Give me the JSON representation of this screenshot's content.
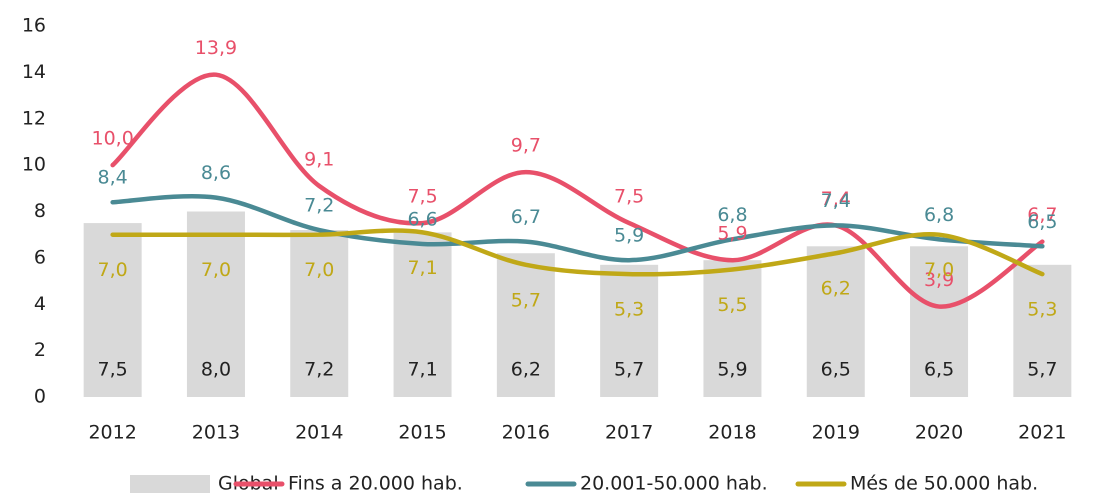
{
  "chart_data": {
    "type": "bar_line",
    "categories": [
      "2012",
      "2013",
      "2014",
      "2015",
      "2016",
      "2017",
      "2018",
      "2019",
      "2020",
      "2021"
    ],
    "ylim": [
      0,
      16
    ],
    "yticks": [
      0,
      2,
      4,
      6,
      8,
      10,
      12,
      14,
      16
    ],
    "grid": false,
    "legend": "bottom",
    "series": [
      {
        "name": "Global",
        "type": "bar",
        "color": "#d9d9d9",
        "values": [
          7.5,
          8.0,
          7.2,
          7.1,
          6.2,
          5.7,
          5.9,
          6.5,
          6.5,
          5.7
        ],
        "value_labels": [
          "7,5",
          "8,0",
          "7,2",
          "7,1",
          "6,2",
          "5,7",
          "5,9",
          "6,5",
          "6,5",
          "5,7"
        ]
      },
      {
        "name": "Fins a 20.000 hab.",
        "type": "line",
        "color": "#e8506a",
        "values": [
          10.0,
          13.9,
          9.1,
          7.5,
          9.7,
          7.5,
          5.9,
          7.4,
          3.9,
          6.7
        ],
        "value_labels": [
          "10,0",
          "13,9",
          "9,1",
          "7,5",
          "9,7",
          "7,5",
          "5,9",
          "7,4",
          "3,9",
          "6,7"
        ]
      },
      {
        "name": "20.001-50.000 hab.",
        "type": "line",
        "color": "#4a8a94",
        "values": [
          8.4,
          8.6,
          7.2,
          6.6,
          6.7,
          5.9,
          6.8,
          7.4,
          6.8,
          6.5
        ],
        "value_labels": [
          "8,4",
          "8,6",
          "7,2",
          "6,6",
          "6,7",
          "5,9",
          "6,8",
          "7,4",
          "6,8",
          "6,5"
        ]
      },
      {
        "name": "Més de 50.000 hab.",
        "type": "line",
        "color": "#c0a817",
        "values": [
          7.0,
          7.0,
          7.0,
          7.1,
          5.7,
          5.3,
          5.5,
          6.2,
          7.0,
          5.3
        ],
        "value_labels": [
          "7,0",
          "7,0",
          "7,0",
          "7,1",
          "5,7",
          "5,3",
          "5,5",
          "6,2",
          "7,0",
          "5,3"
        ]
      }
    ]
  }
}
